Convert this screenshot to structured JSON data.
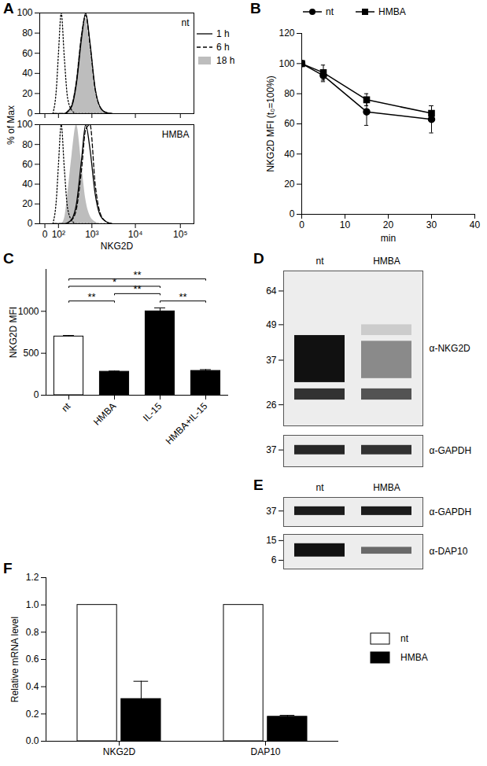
{
  "chart_data": [
    {
      "panel": "A",
      "type": "histogram",
      "x_label": "NKG2D",
      "y_label": "% of Max",
      "log": "x",
      "legend": "right",
      "xlim": [
        -30,
        200000
      ],
      "xticks": [
        0,
        {
          "value": 100,
          "label": "10²"
        },
        {
          "value": 1000,
          "label": "10³"
        },
        {
          "value": 10000,
          "label": "10⁴"
        },
        {
          "value": 100000,
          "label": "10⁵"
        }
      ],
      "ylim": [
        0,
        100
      ],
      "yticks": [
        0,
        20,
        40,
        60,
        80,
        100
      ],
      "x": [
        50,
        80,
        100,
        130,
        170,
        220,
        300,
        400,
        550,
        700,
        900,
        1200,
        1600,
        2200,
        3000
      ],
      "panels": [
        {
          "label": "nt",
          "series": [
            {
              "line_style": "dotted",
              "color": "#000000",
              "values": [
                0,
                25,
                60,
                100,
                55,
                15,
                3,
                0,
                0,
                0,
                0,
                0,
                0,
                0,
                0
              ]
            },
            {
              "name": "1 h",
              "line_style": "solid",
              "color": "#000000",
              "values": [
                0,
                0,
                0,
                0,
                0,
                2,
                8,
                30,
                75,
                100,
                70,
                25,
                6,
                1,
                0
              ]
            },
            {
              "name": "6 h",
              "line_style": "dashed",
              "color": "#000000",
              "values": [
                0,
                0,
                0,
                0,
                0,
                2,
                9,
                32,
                78,
                98,
                68,
                24,
                6,
                1,
                0
              ]
            },
            {
              "name": "18 h",
              "type": "area",
              "color": "#bdbdbd",
              "values": [
                0,
                0,
                0,
                0,
                0,
                3,
                10,
                35,
                80,
                95,
                65,
                22,
                5,
                1,
                0
              ]
            }
          ]
        },
        {
          "label": "HMBA",
          "series": [
            {
              "line_style": "dotted",
              "color": "#000000",
              "values": [
                0,
                25,
                60,
                100,
                55,
                15,
                3,
                0,
                0,
                0,
                0,
                0,
                0,
                0,
                0
              ]
            },
            {
              "name": "1 h",
              "line_style": "solid",
              "color": "#000000",
              "values": [
                0,
                0,
                0,
                0,
                0,
                1,
                5,
                20,
                65,
                100,
                75,
                30,
                8,
                2,
                0
              ]
            },
            {
              "name": "6 h",
              "line_style": "dashed",
              "color": "#000000",
              "values": [
                0,
                0,
                0,
                0,
                0,
                1,
                4,
                15,
                55,
                95,
                100,
                40,
                10,
                2,
                0
              ]
            },
            {
              "name": "18 h",
              "type": "area",
              "color": "#bdbdbd",
              "values": [
                0,
                0,
                0,
                0,
                5,
                30,
                70,
                100,
                60,
                25,
                8,
                2,
                0,
                0,
                0
              ]
            }
          ]
        }
      ]
    },
    {
      "panel": "B",
      "type": "line",
      "x_label": "min",
      "y_label": "NKG2D MFI (t₀=100%)",
      "legend": "top",
      "x": [
        0,
        5,
        15,
        30
      ],
      "xlim": [
        0,
        40
      ],
      "xticks": [
        0,
        10,
        20,
        30,
        40
      ],
      "ylim": [
        0,
        120
      ],
      "yticks": [
        0,
        20,
        40,
        60,
        80,
        100,
        120
      ],
      "series": [
        {
          "name": "nt",
          "marker": "circle",
          "color": "#000000",
          "values": [
            100,
            92,
            68,
            63
          ],
          "errors": [
            0,
            4,
            9,
            9
          ]
        },
        {
          "name": "HMBA",
          "marker": "square",
          "color": "#000000",
          "values": [
            100,
            94,
            76,
            67
          ],
          "errors": [
            0,
            5,
            4,
            5
          ]
        }
      ]
    },
    {
      "panel": "C",
      "type": "bar",
      "y_label": "NKG2D MFI",
      "categories": [
        "nt",
        "HMBA",
        "IL-15",
        "HMBA+IL-15"
      ],
      "values": [
        700,
        280,
        1000,
        290
      ],
      "errors": [
        12,
        8,
        40,
        15
      ],
      "colors": [
        "#ffffff",
        "#000000",
        "#000000",
        "#000000"
      ],
      "ylim": [
        0,
        1500
      ],
      "yticks": [
        0,
        500,
        1000
      ],
      "significance": [
        {
          "from": "nt",
          "to": "HMBA",
          "label": "**"
        },
        {
          "from": "nt",
          "to": "IL-15",
          "label": "*"
        },
        {
          "from": "HMBA",
          "to": "IL-15",
          "label": "**"
        },
        {
          "from": "IL-15",
          "to": "HMBA+IL-15",
          "label": "**"
        },
        {
          "from": "nt",
          "to": "HMBA+IL-15",
          "label": "**"
        }
      ]
    },
    {
      "panel": "D",
      "type": "blot",
      "lanes": [
        "nt",
        "HMBA"
      ],
      "blots": [
        {
          "label": "α-NKG2D",
          "log": "y",
          "ylim": [
            22,
            75
          ],
          "yticks": [
            64,
            49,
            37,
            26
          ],
          "bands": [
            {
              "lane": "nt",
              "kda_low": 31,
              "kda_high": 45,
              "intensity": 1.0
            },
            {
              "lane": "nt",
              "kda_low": 27,
              "kda_high": 29.5,
              "intensity": 0.85
            },
            {
              "lane": "HMBA",
              "kda_low": 32,
              "kda_high": 43,
              "intensity": 0.45
            },
            {
              "lane": "HMBA",
              "kda_low": 45,
              "kda_high": 49,
              "intensity": 0.15
            },
            {
              "lane": "HMBA",
              "kda_low": 27,
              "kda_high": 29.5,
              "intensity": 0.7
            }
          ]
        },
        {
          "label": "α-GAPDH",
          "log": "y",
          "ylim": [
            32,
            42
          ],
          "yticks": [
            37
          ],
          "bands": [
            {
              "lane": "nt",
              "kda_low": 35.5,
              "kda_high": 38.5,
              "intensity": 0.9
            },
            {
              "lane": "HMBA",
              "kda_low": 35.5,
              "kda_high": 38.5,
              "intensity": 0.85
            }
          ]
        }
      ]
    },
    {
      "panel": "E",
      "type": "blot",
      "lanes": [
        "nt",
        "HMBA"
      ],
      "blots": [
        {
          "label": "α-GAPDH",
          "log": "y",
          "ylim": [
            32,
            42
          ],
          "yticks": [
            37
          ],
          "bands": [
            {
              "lane": "nt",
              "kda_low": 35.5,
              "kda_high": 38.5,
              "intensity": 0.95
            },
            {
              "lane": "HMBA",
              "kda_low": 35.5,
              "kda_high": 38.5,
              "intensity": 0.95
            }
          ]
        },
        {
          "label": "α-DAP10",
          "log": "y",
          "ylim": [
            4,
            20
          ],
          "yticks": [
            15,
            6
          ],
          "bands": [
            {
              "lane": "nt",
              "kda_low": 7,
              "kda_high": 13,
              "intensity": 1.0
            },
            {
              "lane": "HMBA",
              "kda_low": 8,
              "kda_high": 11,
              "intensity": 0.6
            }
          ]
        }
      ]
    },
    {
      "panel": "F",
      "type": "bar",
      "y_label": "Relative mRNA level",
      "legend": "right",
      "categories": [
        "NKG2D",
        "DAP10"
      ],
      "ylim": [
        0,
        1.2
      ],
      "yticks": [
        {
          "value": 0,
          "label": "0.0"
        },
        0.2,
        0.4,
        0.6,
        0.8,
        {
          "value": 1,
          "label": "1.0"
        },
        1.2
      ],
      "series": [
        {
          "name": "nt",
          "color": "#ffffff",
          "values": [
            1,
            1
          ]
        },
        {
          "name": "HMBA",
          "color": "#000000",
          "values": [
            0.31,
            0.18
          ],
          "errors": [
            0.13,
            0.01
          ]
        }
      ]
    }
  ]
}
